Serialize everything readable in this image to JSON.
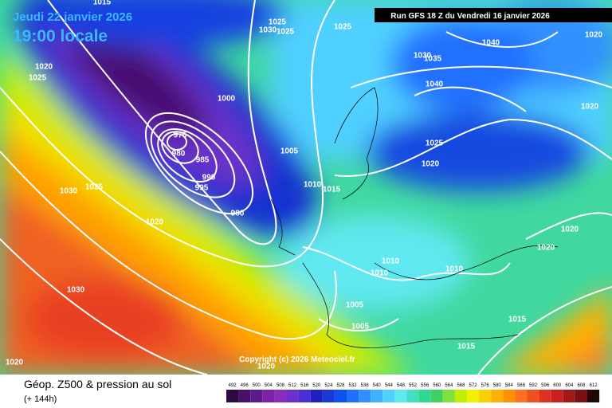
{
  "header": {
    "date": "Jeudi 22 janvier 2026",
    "time": "19:00 locale",
    "run": "Run GFS 18 Z du Vendredi 16 janvier 2026"
  },
  "isobars": [
    1015,
    1025,
    1020,
    1030,
    1025,
    1025,
    1025,
    1030,
    1035,
    1040,
    1040,
    1020,
    1020,
    1000,
    975,
    980,
    985,
    990,
    995,
    980,
    1005,
    1010,
    1015,
    1025,
    1020,
    1030,
    1025,
    1020,
    1020,
    1020,
    1010,
    1010,
    1010,
    1005,
    1005,
    1015,
    1015,
    1030,
    1020,
    1020
  ],
  "copyright": "Copyright (c) 2026 Meteociel.fr",
  "footer": {
    "title": "Géop. Z500 & pression au sol",
    "lead_time": "(+ 144h)"
  },
  "legend": {
    "ticks": [
      492,
      496,
      500,
      504,
      508,
      512,
      516,
      520,
      524,
      528,
      532,
      536,
      540,
      544,
      548,
      552,
      556,
      560,
      564,
      568,
      572,
      576,
      580,
      584,
      588,
      592,
      596,
      600,
      604,
      608,
      612
    ],
    "colors": [
      "#2b0a3d",
      "#46106a",
      "#5e1a8c",
      "#7a22a8",
      "#8c2cbe",
      "#6a30c8",
      "#4a30d0",
      "#2020c0",
      "#1838d8",
      "#1050f0",
      "#2070ff",
      "#3090ff",
      "#40b0ff",
      "#50d0ff",
      "#60e8f0",
      "#40e0c0",
      "#30d890",
      "#40d060",
      "#80e040",
      "#c0f000",
      "#f0f000",
      "#f8d000",
      "#ffb000",
      "#ff9000",
      "#ff7020",
      "#f05020",
      "#e03020",
      "#c82020",
      "#a01818",
      "#781010",
      "#200808"
    ]
  }
}
